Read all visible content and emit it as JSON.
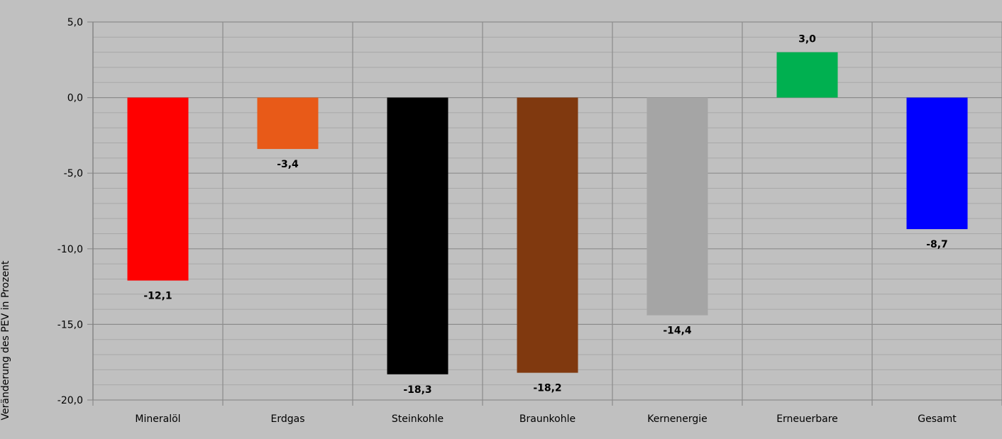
{
  "chart_data": {
    "type": "bar",
    "title": "",
    "xlabel": "",
    "ylabel": "Veränderung des PEV in Prozent",
    "categories": [
      "Mineralöl",
      "Erdgas",
      "Steinkohle",
      "Braunkohle",
      "Kernenergie",
      "Erneuerbare",
      "Gesamt"
    ],
    "values": [
      -12.1,
      -3.4,
      -18.3,
      -18.2,
      -14.4,
      3.0,
      -8.7
    ],
    "value_labels": [
      "-12,1",
      "-3,4",
      "-18,3",
      "-18,2",
      "-14,4",
      "3,0",
      "-8,7"
    ],
    "colors": [
      "#ff0000",
      "#e85a18",
      "#000000",
      "#80390f",
      "#a5a5a5",
      "#00b050",
      "#0000ff"
    ],
    "ylim": [
      -20,
      5
    ],
    "yticks": [
      5,
      0,
      -5,
      -10,
      -15,
      -20
    ],
    "ytick_labels": [
      "5,0",
      "0,0",
      "-5,0",
      "-10,0",
      "-15,0",
      "-20,0"
    ],
    "grid": true,
    "minor_grid": true,
    "legend": "none",
    "background": "#c0c0c0",
    "gridline_color": "#8c8c8c"
  }
}
